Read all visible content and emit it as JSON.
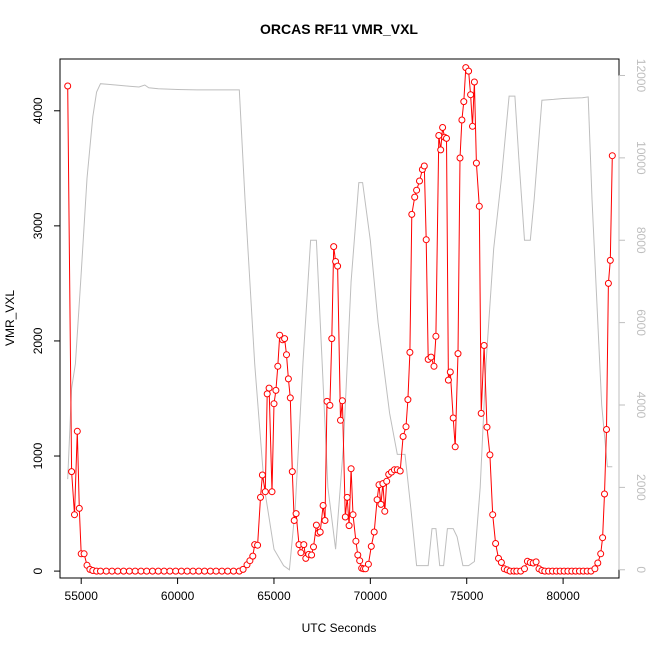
{
  "chart_data": {
    "type": "line",
    "title": "ORCAS RF11 VMR_VXL",
    "xlabel": "UTC Seconds",
    "ylabel": "VMR_VXL",
    "xlim": [
      53900,
      82900
    ],
    "ylim": [
      -60,
      4450
    ],
    "y2lim": [
      -200,
      12400
    ],
    "x_ticks": [
      {
        "value": 55000,
        "label": "55000"
      },
      {
        "value": 60000,
        "label": "60000"
      },
      {
        "value": 65000,
        "label": "65000"
      },
      {
        "value": 70000,
        "label": "70000"
      },
      {
        "value": 75000,
        "label": "75000"
      },
      {
        "value": 80000,
        "label": "80000"
      }
    ],
    "y_ticks": [
      {
        "value": 0,
        "label": "0"
      },
      {
        "value": 1000,
        "label": "1000"
      },
      {
        "value": 2000,
        "label": "2000"
      },
      {
        "value": 3000,
        "label": "3000"
      },
      {
        "value": 4000,
        "label": "4000"
      }
    ],
    "y2_ticks": [
      {
        "value": 0,
        "label": "0"
      },
      {
        "value": 2000,
        "label": "2000"
      },
      {
        "value": 4000,
        "label": "4000"
      },
      {
        "value": 6000,
        "label": "6000"
      },
      {
        "value": 8000,
        "label": "8000"
      },
      {
        "value": 10000,
        "label": "10000"
      },
      {
        "value": 12000,
        "label": "12000"
      }
    ],
    "grid": false,
    "colors": {
      "vmr": "#ff0000",
      "altitude": "#bebebe",
      "axis": "#000000"
    },
    "series": [
      {
        "axis": "left",
        "style": "line-with-open-circles",
        "points": [
          [
            54300,
            4215
          ],
          [
            54500,
            865
          ],
          [
            54650,
            490
          ],
          [
            54800,
            1215
          ],
          [
            54900,
            545
          ],
          [
            55000,
            150
          ],
          [
            55150,
            150
          ],
          [
            55300,
            50
          ],
          [
            55450,
            15
          ],
          [
            55600,
            5
          ],
          [
            55800,
            0
          ],
          [
            56000,
            0
          ],
          [
            56300,
            0
          ],
          [
            56600,
            0
          ],
          [
            56900,
            0
          ],
          [
            57200,
            0
          ],
          [
            57500,
            0
          ],
          [
            57800,
            0
          ],
          [
            58100,
            0
          ],
          [
            58400,
            0
          ],
          [
            58700,
            0
          ],
          [
            59000,
            0
          ],
          [
            59300,
            0
          ],
          [
            59600,
            0
          ],
          [
            59900,
            0
          ],
          [
            60200,
            0
          ],
          [
            60500,
            0
          ],
          [
            60800,
            0
          ],
          [
            61100,
            0
          ],
          [
            61400,
            0
          ],
          [
            61700,
            0
          ],
          [
            62000,
            0
          ],
          [
            62300,
            0
          ],
          [
            62600,
            0
          ],
          [
            62900,
            0
          ],
          [
            63200,
            0
          ],
          [
            63400,
            15
          ],
          [
            63600,
            55
          ],
          [
            63750,
            90
          ],
          [
            63900,
            130
          ],
          [
            64000,
            230
          ],
          [
            64150,
            225
          ],
          [
            64300,
            640
          ],
          [
            64400,
            835
          ],
          [
            64550,
            690
          ],
          [
            64650,
            1540
          ],
          [
            64750,
            1590
          ],
          [
            64900,
            690
          ],
          [
            65000,
            1455
          ],
          [
            65100,
            1570
          ],
          [
            65200,
            1780
          ],
          [
            65300,
            2050
          ],
          [
            65450,
            2010
          ],
          [
            65550,
            2020
          ],
          [
            65650,
            1880
          ],
          [
            65750,
            1670
          ],
          [
            65850,
            1505
          ],
          [
            65950,
            865
          ],
          [
            66050,
            440
          ],
          [
            66150,
            500
          ],
          [
            66300,
            230
          ],
          [
            66400,
            160
          ],
          [
            66550,
            230
          ],
          [
            66650,
            110
          ],
          [
            66800,
            145
          ],
          [
            66950,
            140
          ],
          [
            67050,
            210
          ],
          [
            67200,
            400
          ],
          [
            67300,
            330
          ],
          [
            67400,
            340
          ],
          [
            67550,
            570
          ],
          [
            67650,
            440
          ],
          [
            67750,
            1475
          ],
          [
            67900,
            1440
          ],
          [
            68000,
            2020
          ],
          [
            68100,
            2820
          ],
          [
            68200,
            2690
          ],
          [
            68300,
            2650
          ],
          [
            68450,
            1310
          ],
          [
            68550,
            1480
          ],
          [
            68700,
            470
          ],
          [
            68800,
            640
          ],
          [
            68900,
            395
          ],
          [
            69000,
            890
          ],
          [
            69100,
            490
          ],
          [
            69250,
            260
          ],
          [
            69350,
            140
          ],
          [
            69450,
            90
          ],
          [
            69550,
            25
          ],
          [
            69650,
            20
          ],
          [
            69750,
            20
          ],
          [
            69900,
            60
          ],
          [
            70050,
            215
          ],
          [
            70200,
            340
          ],
          [
            70350,
            620
          ],
          [
            70450,
            750
          ],
          [
            70550,
            580
          ],
          [
            70650,
            760
          ],
          [
            70750,
            520
          ],
          [
            70850,
            780
          ],
          [
            70950,
            840
          ],
          [
            71100,
            860
          ],
          [
            71250,
            880
          ],
          [
            71400,
            880
          ],
          [
            71550,
            870
          ],
          [
            71700,
            1170
          ],
          [
            71850,
            1255
          ],
          [
            71950,
            1490
          ],
          [
            72050,
            1900
          ],
          [
            72150,
            3100
          ],
          [
            72300,
            3250
          ],
          [
            72400,
            3310
          ],
          [
            72550,
            3390
          ],
          [
            72700,
            3490
          ],
          [
            72800,
            3520
          ],
          [
            72900,
            2880
          ],
          [
            73000,
            1840
          ],
          [
            73150,
            1860
          ],
          [
            73300,
            1780
          ],
          [
            73400,
            2040
          ],
          [
            73550,
            3785
          ],
          [
            73650,
            3660
          ],
          [
            73750,
            3855
          ],
          [
            73850,
            3770
          ],
          [
            73950,
            3760
          ],
          [
            74050,
            1660
          ],
          [
            74150,
            1730
          ],
          [
            74300,
            1330
          ],
          [
            74400,
            1080
          ],
          [
            74550,
            1890
          ],
          [
            74650,
            3590
          ],
          [
            74750,
            3920
          ],
          [
            74850,
            4080
          ],
          [
            74950,
            4375
          ],
          [
            75100,
            4345
          ],
          [
            75200,
            4140
          ],
          [
            75300,
            3865
          ],
          [
            75400,
            4250
          ],
          [
            75500,
            3545
          ],
          [
            75650,
            3170
          ],
          [
            75750,
            1370
          ],
          [
            75900,
            1960
          ],
          [
            76050,
            1250
          ],
          [
            76200,
            1010
          ],
          [
            76350,
            490
          ],
          [
            76500,
            240
          ],
          [
            76650,
            110
          ],
          [
            76800,
            75
          ],
          [
            76950,
            20
          ],
          [
            77100,
            10
          ],
          [
            77250,
            0
          ],
          [
            77450,
            0
          ],
          [
            77600,
            0
          ],
          [
            77800,
            0
          ],
          [
            78000,
            20
          ],
          [
            78150,
            85
          ],
          [
            78300,
            75
          ],
          [
            78450,
            70
          ],
          [
            78600,
            80
          ],
          [
            78750,
            20
          ],
          [
            78900,
            5
          ],
          [
            79050,
            0
          ],
          [
            79250,
            0
          ],
          [
            79450,
            0
          ],
          [
            79650,
            0
          ],
          [
            79850,
            0
          ],
          [
            80050,
            0
          ],
          [
            80250,
            0
          ],
          [
            80450,
            0
          ],
          [
            80650,
            0
          ],
          [
            80850,
            0
          ],
          [
            81050,
            0
          ],
          [
            81250,
            0
          ],
          [
            81450,
            0
          ],
          [
            81650,
            20
          ],
          [
            81800,
            70
          ],
          [
            81950,
            150
          ],
          [
            82050,
            290
          ],
          [
            82150,
            670
          ],
          [
            82250,
            1230
          ],
          [
            82350,
            2500
          ],
          [
            82450,
            2700
          ],
          [
            82550,
            3610
          ]
        ]
      },
      {
        "axis": "right",
        "style": "line",
        "points": [
          [
            54300,
            2200
          ],
          [
            54500,
            4400
          ],
          [
            54700,
            5000
          ],
          [
            55000,
            7200
          ],
          [
            55300,
            9500
          ],
          [
            55600,
            11000
          ],
          [
            55800,
            11600
          ],
          [
            56000,
            11800
          ],
          [
            56500,
            11780
          ],
          [
            57000,
            11760
          ],
          [
            57500,
            11740
          ],
          [
            58000,
            11720
          ],
          [
            58300,
            11770
          ],
          [
            58500,
            11700
          ],
          [
            59000,
            11680
          ],
          [
            60000,
            11660
          ],
          [
            61000,
            11650
          ],
          [
            62000,
            11650
          ],
          [
            63200,
            11650
          ],
          [
            63500,
            9000
          ],
          [
            64000,
            5000
          ],
          [
            64500,
            2000
          ],
          [
            65000,
            500
          ],
          [
            65500,
            100
          ],
          [
            65800,
            0
          ],
          [
            66100,
            1500
          ],
          [
            66500,
            5000
          ],
          [
            66900,
            8000
          ],
          [
            67200,
            8000
          ],
          [
            67500,
            5000
          ],
          [
            67800,
            2000
          ],
          [
            68200,
            500
          ],
          [
            68600,
            3000
          ],
          [
            69000,
            7000
          ],
          [
            69400,
            9400
          ],
          [
            69600,
            9400
          ],
          [
            70000,
            8000
          ],
          [
            70400,
            6000
          ],
          [
            71000,
            3800
          ],
          [
            71400,
            2800
          ],
          [
            71800,
            2800
          ],
          [
            72100,
            1500
          ],
          [
            72400,
            100
          ],
          [
            72700,
            100
          ],
          [
            73000,
            100
          ],
          [
            73200,
            1000
          ],
          [
            73400,
            1000
          ],
          [
            73600,
            100
          ],
          [
            73800,
            100
          ],
          [
            74000,
            1000
          ],
          [
            74300,
            1000
          ],
          [
            74500,
            800
          ],
          [
            74800,
            100
          ],
          [
            75100,
            100
          ],
          [
            75400,
            200
          ],
          [
            75700,
            2000
          ],
          [
            76000,
            5000
          ],
          [
            76400,
            7800
          ],
          [
            76800,
            9500
          ],
          [
            77200,
            11500
          ],
          [
            77500,
            11500
          ],
          [
            77700,
            10000
          ],
          [
            78000,
            8000
          ],
          [
            78300,
            8000
          ],
          [
            78500,
            9000
          ],
          [
            78900,
            11400
          ],
          [
            79500,
            11420
          ],
          [
            80000,
            11440
          ],
          [
            80500,
            11450
          ],
          [
            81000,
            11460
          ],
          [
            81300,
            11480
          ],
          [
            81500,
            9000
          ],
          [
            82000,
            4000
          ],
          [
            82300,
            2500
          ],
          [
            82550,
            2500
          ]
        ]
      }
    ]
  }
}
